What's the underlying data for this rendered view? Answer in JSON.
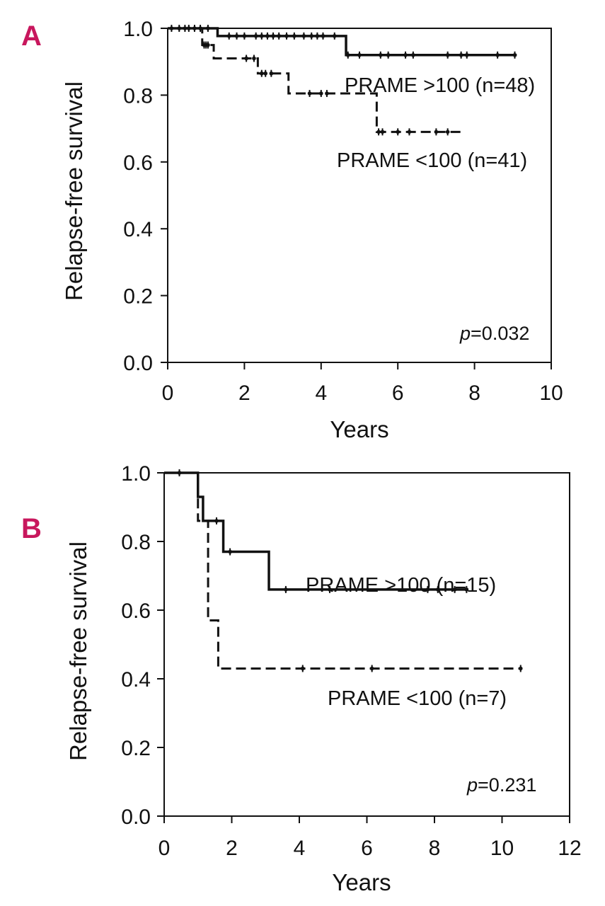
{
  "colors": {
    "panel_letter": "#c8175d",
    "lines": "#111111"
  },
  "chart_data": [
    {
      "type": "line",
      "panel": "A",
      "title": "",
      "xlabel": "Years",
      "ylabel": "Relapse-free survival",
      "xlim": [
        0,
        10
      ],
      "ylim": [
        0,
        1
      ],
      "xticks": [
        "0",
        "2",
        "4",
        "6",
        "8",
        "10"
      ],
      "yticks": [
        "0.0",
        "0.2",
        "0.4",
        "0.6",
        "0.8",
        "1.0"
      ],
      "annotation": {
        "italic": "p",
        "rest": "=0.032"
      },
      "series": [
        {
          "name": "PRAME >100 (n=48)",
          "style": "solid",
          "x": [
            0,
            1.3,
            4.65,
            9.1
          ],
          "y": [
            1.0,
            0.977,
            0.92,
            0.92
          ],
          "censor_x": [
            0.1,
            0.3,
            0.45,
            0.55,
            0.7,
            0.85,
            1.05,
            1.6,
            1.8,
            2.0,
            2.3,
            2.45,
            2.6,
            2.75,
            2.9,
            3.1,
            3.3,
            3.55,
            3.75,
            3.9,
            4.05,
            4.35,
            4.7,
            5.0,
            5.55,
            5.75,
            6.2,
            6.4,
            7.3,
            7.65,
            7.8,
            8.6,
            9.05
          ]
        },
        {
          "name": "PRAME <100 (n=41)",
          "style": "dashed",
          "x": [
            0,
            0.9,
            1.2,
            2.35,
            3.15,
            5.45,
            7.7
          ],
          "y": [
            1.0,
            0.95,
            0.91,
            0.865,
            0.805,
            0.69,
            0.69
          ],
          "censor_x": [
            0.95,
            1.0,
            1.05,
            2.05,
            2.25,
            2.45,
            2.55,
            2.7,
            3.7,
            4.0,
            4.15,
            5.5,
            5.6,
            6.0,
            6.3,
            7.0,
            7.3
          ]
        }
      ]
    },
    {
      "type": "line",
      "panel": "B",
      "title": "",
      "xlabel": "Years",
      "ylabel": "Relapse-free survival",
      "xlim": [
        0,
        12
      ],
      "ylim": [
        0,
        1
      ],
      "xticks": [
        "0",
        "2",
        "4",
        "6",
        "8",
        "10",
        "12"
      ],
      "yticks": [
        "0.0",
        "0.2",
        "0.4",
        "0.6",
        "0.8",
        "1.0"
      ],
      "annotation": {
        "italic": "p",
        "rest": "=0.231"
      },
      "series": [
        {
          "name": "PRAME >100 (n=15)",
          "style": "solid",
          "x": [
            0,
            1.0,
            1.15,
            1.75,
            3.1,
            9.0
          ],
          "y": [
            1.0,
            0.93,
            0.86,
            0.77,
            0.66,
            0.66
          ],
          "censor_x": [
            0.45,
            1.55,
            1.95,
            3.6,
            4.9,
            7.8,
            8.1,
            8.6,
            8.95
          ]
        },
        {
          "name": "PRAME <100 (n=7)",
          "style": "dashed",
          "x": [
            0,
            1.0,
            1.3,
            1.6,
            10.6
          ],
          "y": [
            1.0,
            0.86,
            0.57,
            0.43,
            0.43
          ],
          "censor_x": [
            4.1,
            6.15,
            10.55
          ]
        }
      ]
    }
  ]
}
